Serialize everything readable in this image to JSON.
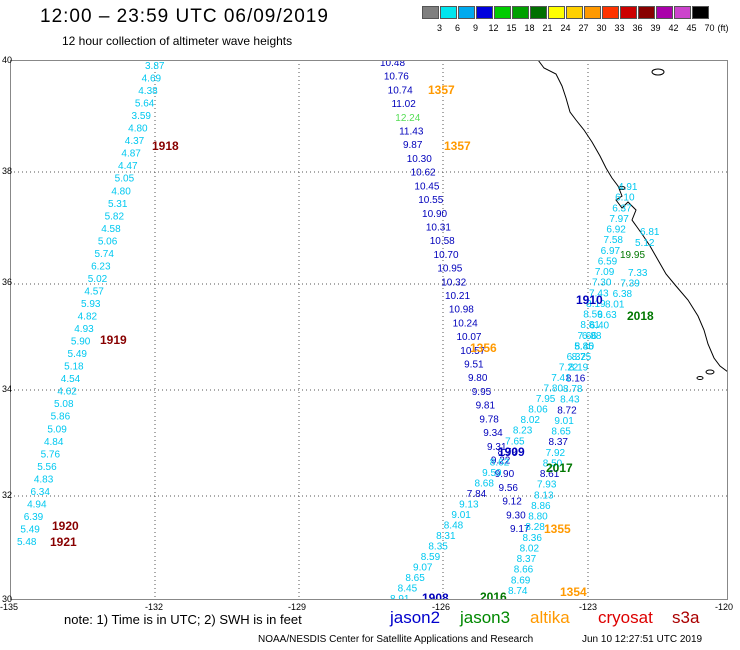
{
  "header": {
    "title": "12:00 – 23:59 UTC 06/09/2019",
    "subtitle": "12 hour collection of altimeter wave heights"
  },
  "scale": {
    "unit": "(ft)",
    "steps": [
      {
        "label": "3",
        "color": "#7f7f7f"
      },
      {
        "label": "6",
        "color": "#00e5ee"
      },
      {
        "label": "9",
        "color": "#00aaee"
      },
      {
        "label": "12",
        "color": "#0000dd"
      },
      {
        "label": "15",
        "color": "#00cc00"
      },
      {
        "label": "18",
        "color": "#00a000"
      },
      {
        "label": "21",
        "color": "#007000"
      },
      {
        "label": "24",
        "color": "#ffff00"
      },
      {
        "label": "27",
        "color": "#ffd000"
      },
      {
        "label": "30",
        "color": "#ff9900"
      },
      {
        "label": "33",
        "color": "#ff3300"
      },
      {
        "label": "36",
        "color": "#cc0000"
      },
      {
        "label": "39",
        "color": "#880000"
      },
      {
        "label": "42",
        "color": "#aa00aa"
      },
      {
        "label": "45",
        "color": "#cc44cc"
      },
      {
        "label": "70",
        "color": "#000000"
      }
    ]
  },
  "map": {
    "lat_labels": [
      "40",
      "38",
      "36",
      "34",
      "32",
      "30"
    ],
    "lon_labels": [
      "-135",
      "-132",
      "-129",
      "-126",
      "-123",
      "-120"
    ],
    "colors": {
      "cyan": "#00c8f0",
      "blue": "#0000bb",
      "green": "#55dd55",
      "orange": "#ff9900",
      "darkred": "#880000",
      "darkgreen": "#007700"
    },
    "track_a": {
      "color": "cyan",
      "values": [
        "3.87",
        "4.69",
        "4.38",
        "5.64",
        "3.59",
        "4.80",
        "4.37",
        "4.87",
        "4.47",
        "5.05",
        "4.80",
        "5.31",
        "5.82",
        "4.58",
        "5.06",
        "5.74",
        "6.23",
        "5.02",
        "4.57",
        "5.93",
        "4.82",
        "4.93",
        "5.90",
        "5.49",
        "5.18",
        "4.54",
        "4.62",
        "5.08",
        "5.86",
        "5.09",
        "4.84",
        "5.76",
        "5.56",
        "4.83",
        "6.34",
        "4.94",
        "6.39",
        "5.49",
        "5.48"
      ]
    },
    "track_b": {
      "values": [
        "10.48",
        "10.76",
        "10.74",
        "11.02",
        "12.24",
        "11.43",
        "9.87",
        "10.30",
        "10.62",
        "10.45",
        "10.55",
        "10.90",
        "10.31",
        "10.58",
        "10.70",
        "10.95",
        "10.32",
        "10.21",
        "10.98",
        "10.24",
        "10.07",
        "10.57",
        "9.51",
        "9.80",
        "9.95",
        "9.81",
        "9.78",
        "9.34",
        "9.31",
        "9.22",
        "9.90",
        "9.56",
        "9.12",
        "9.30",
        "9.17"
      ]
    },
    "track_c": {
      "values": [
        "4.91",
        "6.10",
        "6.37",
        "7.97",
        "6.92",
        "7.58",
        "6.97",
        "6.59",
        "7.09",
        "7.30",
        "7.43",
        "8.19",
        "8.59",
        "8.81",
        "7.66",
        "8.40",
        "8.75",
        "8.19",
        "8.16",
        "8.78",
        "8.43",
        "8.72",
        "9.01",
        "8.65",
        "8.37",
        "7.92",
        "8.50",
        "8.61",
        "7.93",
        "8.13",
        "8.86",
        "8.80",
        "8.28",
        "8.36",
        "8.02",
        "8.37",
        "8.66",
        "8.69",
        "8.74"
      ]
    },
    "track_d": {
      "values": [
        "7.33",
        "7.39",
        "6.38",
        "8.01",
        "6.63",
        "6.40",
        "6.88",
        "5.85",
        "6.32",
        "7.22",
        "7.41",
        "7.80",
        "7.95",
        "8.06",
        "8.02",
        "8.23",
        "7.65",
        "8.79",
        "8.62",
        "9.59",
        "8.68",
        "7.84",
        "9.13",
        "9.01",
        "8.48",
        "8.31",
        "8.35",
        "8.59",
        "9.07",
        "8.65",
        "8.45",
        "8.91"
      ]
    },
    "track_e": {
      "values": [
        "6.81",
        "5.12",
        "19.95"
      ]
    },
    "times": [
      {
        "label": "1357",
        "color": "orange"
      },
      {
        "label": "1357",
        "color": "orange"
      },
      {
        "label": "1918",
        "color": "darkred"
      },
      {
        "label": "1919",
        "color": "darkred"
      },
      {
        "label": "1920",
        "color": "darkred"
      },
      {
        "label": "1921",
        "color": "darkred"
      },
      {
        "label": "1910",
        "color": "blue"
      },
      {
        "label": "2018",
        "color": "darkgreen"
      },
      {
        "label": "1356",
        "color": "orange"
      },
      {
        "label": "1909",
        "color": "blue"
      },
      {
        "label": "2017",
        "color": "darkgreen"
      },
      {
        "label": "1355",
        "color": "orange"
      },
      {
        "label": "1908",
        "color": "blue"
      },
      {
        "label": "2016",
        "color": "darkgreen"
      },
      {
        "label": "1354",
        "color": "orange"
      }
    ]
  },
  "footer": {
    "note": "note: 1) Time is in UTC; 2) SWH is in feet",
    "satellites": [
      {
        "label": "jason2",
        "color": "#0000cc"
      },
      {
        "label": "jason3",
        "color": "#008800"
      },
      {
        "label": "altika",
        "color": "#ff9900"
      },
      {
        "label": "cryosat",
        "color": "#dd0000"
      },
      {
        "label": "s3a",
        "color": "#aa0000"
      }
    ],
    "credit": "NOAA/NESDIS Center for Satellite Applications and Research",
    "timestamp": "Jun 10 12:27:51 UTC 2019"
  }
}
